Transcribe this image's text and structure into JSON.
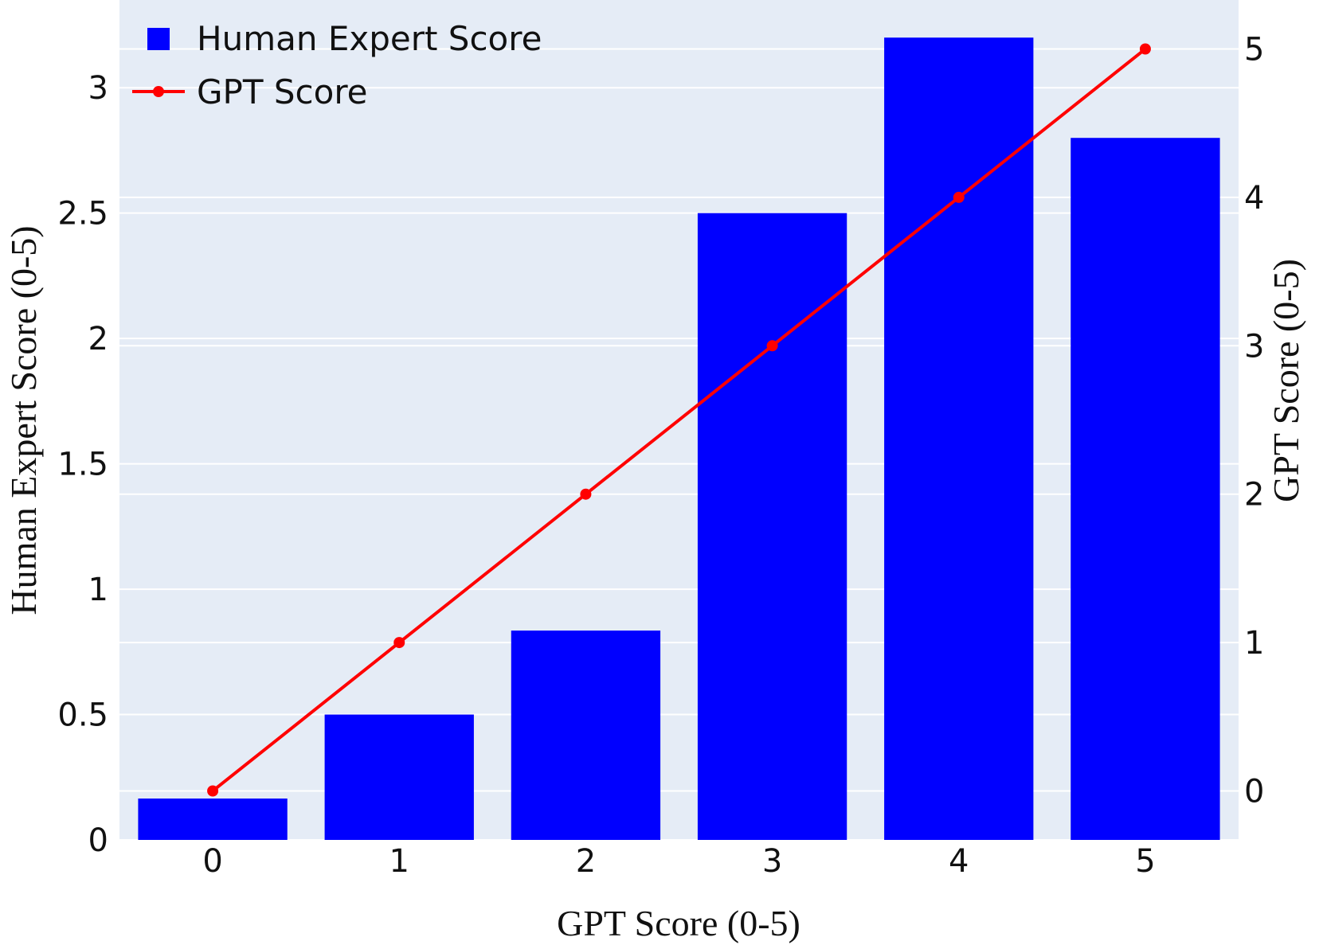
{
  "chart_data": {
    "type": "bar",
    "categories": [
      "0",
      "1",
      "2",
      "3",
      "4",
      "5"
    ],
    "series": [
      {
        "name": "Human Expert Score",
        "type": "bar",
        "axis": "left",
        "color": "#0000ff",
        "values": [
          0.165,
          0.5,
          0.835,
          2.5,
          3.2,
          2.8
        ]
      },
      {
        "name": "GPT Score",
        "type": "line",
        "axis": "right",
        "color": "#ff0000",
        "values": [
          0,
          1,
          2,
          3,
          4,
          5
        ]
      }
    ],
    "xlabel": "GPT Score (0-5)",
    "ylabel": "Human Expert Score (0-5)",
    "y2label": "GPT Score (0-5)",
    "ylim": [
      0,
      3.35
    ],
    "y2lim": [
      -0.33,
      5.33
    ],
    "yticks": [
      "0",
      "0.5",
      "1",
      "1.5",
      "2",
      "2.5",
      "3"
    ],
    "y2ticks": [
      "0",
      "1",
      "2",
      "3",
      "4",
      "5"
    ],
    "grid": true,
    "legend_position": "top-left",
    "plot_background": "#e5ecf6"
  }
}
